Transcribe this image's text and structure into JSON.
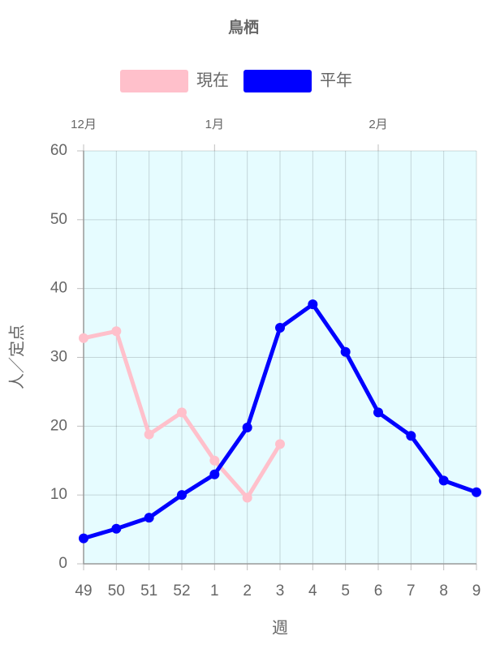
{
  "chart_data": {
    "type": "line",
    "title": "鳥栖",
    "x_label": "週",
    "y_label": "人／定点",
    "categories": [
      "49",
      "50",
      "51",
      "52",
      "1",
      "2",
      "3",
      "4",
      "5",
      "6",
      "7",
      "8",
      "9"
    ],
    "x2_labels": [
      "12月",
      null,
      null,
      null,
      "1月",
      null,
      null,
      null,
      null,
      "2月",
      null,
      null,
      null
    ],
    "series": [
      {
        "name": "現在",
        "color": "#ffc0cb",
        "values": [
          32.8,
          33.8,
          18.8,
          22,
          15,
          9.6,
          17.4,
          null,
          null,
          null,
          null,
          null,
          null
        ]
      },
      {
        "name": "平年",
        "color": "#0000ff",
        "values": [
          3.7,
          5.1,
          6.7,
          10,
          13,
          19.8,
          34.3,
          37.7,
          30.8,
          22,
          18.6,
          12.1,
          10.4
        ]
      }
    ],
    "ylim": [
      0,
      60
    ],
    "yticks": [
      0,
      10,
      20,
      30,
      40,
      50,
      60
    ],
    "grid": true,
    "legend": "top",
    "plot_background": "#e6fcff"
  }
}
